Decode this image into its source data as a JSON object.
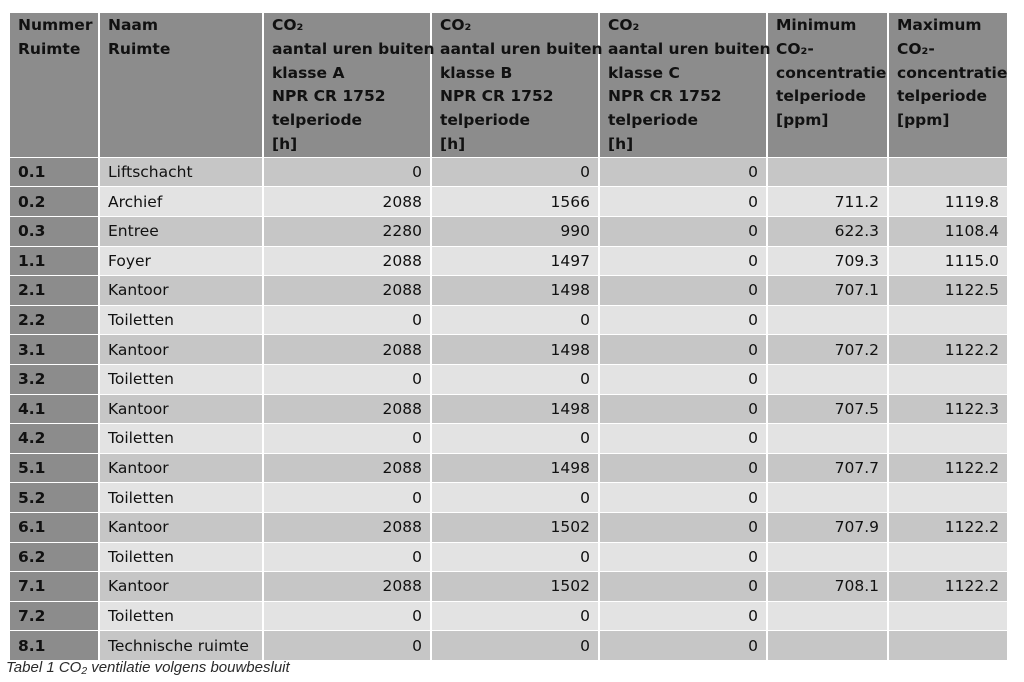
{
  "headers": [
    [
      "Nummer",
      "Ruimte"
    ],
    [
      "Naam",
      "Ruimte"
    ],
    [
      "CO₂",
      "aantal uren buiten",
      "klasse A",
      "NPR CR 1752",
      "telperiode",
      "[h]"
    ],
    [
      "CO₂",
      "aantal uren buiten",
      "klasse B",
      "NPR CR 1752",
      "telperiode",
      "[h]"
    ],
    [
      "CO₂",
      "aantal uren buiten",
      "klasse C",
      "NPR CR 1752",
      "telperiode",
      "[h]"
    ],
    [
      "Minimum",
      "CO₂-",
      "concentratie",
      "telperiode",
      "[ppm]"
    ],
    [
      "Maximum",
      "CO₂-",
      "concentratie",
      "telperiode",
      "[ppm]"
    ]
  ],
  "rows": [
    [
      "0.1",
      "Liftschacht",
      "0",
      "0",
      "0",
      "",
      ""
    ],
    [
      "0.2",
      "Archief",
      "2088",
      "1566",
      "0",
      "711.2",
      "1119.8"
    ],
    [
      "0.3",
      "Entree",
      "2280",
      "990",
      "0",
      "622.3",
      "1108.4"
    ],
    [
      "1.1",
      "Foyer",
      "2088",
      "1497",
      "0",
      "709.3",
      "1115.0"
    ],
    [
      "2.1",
      "Kantoor",
      "2088",
      "1498",
      "0",
      "707.1",
      "1122.5"
    ],
    [
      "2.2",
      "Toiletten",
      "0",
      "0",
      "0",
      "",
      ""
    ],
    [
      "3.1",
      "Kantoor",
      "2088",
      "1498",
      "0",
      "707.2",
      "1122.2"
    ],
    [
      "3.2",
      "Toiletten",
      "0",
      "0",
      "0",
      "",
      ""
    ],
    [
      "4.1",
      "Kantoor",
      "2088",
      "1498",
      "0",
      "707.5",
      "1122.3"
    ],
    [
      "4.2",
      "Toiletten",
      "0",
      "0",
      "0",
      "",
      ""
    ],
    [
      "5.1",
      "Kantoor",
      "2088",
      "1498",
      "0",
      "707.7",
      "1122.2"
    ],
    [
      "5.2",
      "Toiletten",
      "0",
      "0",
      "0",
      "",
      ""
    ],
    [
      "6.1",
      "Kantoor",
      "2088",
      "1502",
      "0",
      "707.9",
      "1122.2"
    ],
    [
      "6.2",
      "Toiletten",
      "0",
      "0",
      "0",
      "",
      ""
    ],
    [
      "7.1",
      "Kantoor",
      "2088",
      "1502",
      "0",
      "708.1",
      "1122.2"
    ],
    [
      "7.2",
      "Toiletten",
      "0",
      "0",
      "0",
      "",
      ""
    ],
    [
      "8.1",
      "Technische ruimte",
      "0",
      "0",
      "0",
      "",
      ""
    ]
  ],
  "caption": "Tabel 1 CO₂ ventilatie volgens bouwbesluit",
  "colors": {
    "header_bg": "#8c8c8c",
    "row_dark": "#c6c6c6",
    "row_light": "#e3e3e3"
  }
}
